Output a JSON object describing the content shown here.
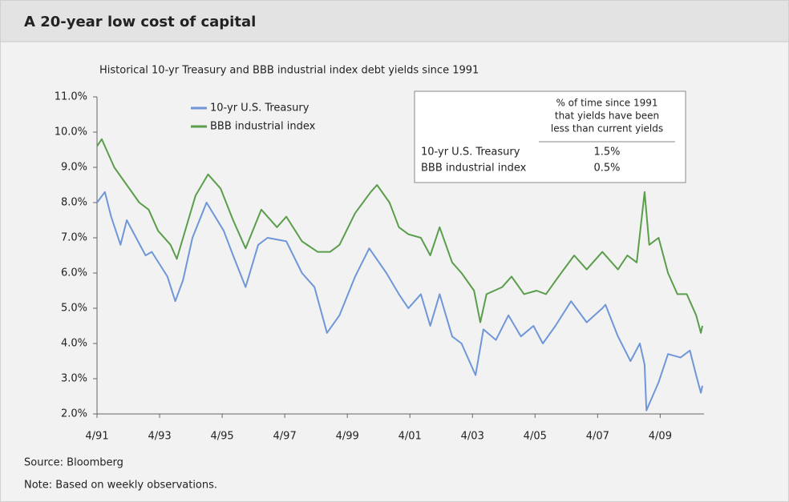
{
  "chart_data": {
    "type": "line",
    "title": "A 20-year low cost of capital",
    "subtitle": "Historical 10-yr Treasury and BBB industrial index debt yields since 1991",
    "source": "Source: Bloomberg",
    "note": "Note: Based on weekly observations.",
    "xlim": [
      1991.25,
      2010.65
    ],
    "xticks": [
      {
        "value": 1991.25,
        "label": "4/91"
      },
      {
        "value": 1993.25,
        "label": "4/93"
      },
      {
        "value": 1995.25,
        "label": "4/95"
      },
      {
        "value": 1997.25,
        "label": "4/97"
      },
      {
        "value": 1999.25,
        "label": "4/99"
      },
      {
        "value": 2001.25,
        "label": "4/01"
      },
      {
        "value": 2003.25,
        "label": "4/03"
      },
      {
        "value": 2005.25,
        "label": "4/05"
      },
      {
        "value": 2007.25,
        "label": "4/07"
      },
      {
        "value": 2009.25,
        "label": "4/09"
      }
    ],
    "ylim": [
      2,
      11
    ],
    "yticks": [
      {
        "value": 2,
        "label": "2.0%"
      },
      {
        "value": 3,
        "label": "3.0%"
      },
      {
        "value": 4,
        "label": "4.0%"
      },
      {
        "value": 5,
        "label": "5.0%"
      },
      {
        "value": 6,
        "label": "6.0%"
      },
      {
        "value": 7,
        "label": "7.0%"
      },
      {
        "value": 8,
        "label": "8.0%"
      },
      {
        "value": 9,
        "label": "9.0%"
      },
      {
        "value": 10,
        "label": "10.0%"
      },
      {
        "value": 11,
        "label": "11.0%"
      }
    ],
    "grid": false,
    "series": [
      {
        "name": "10-yr U.S. Treasury",
        "color": "#6f97d8",
        "x": [
          1991.25,
          1991.5,
          1991.7,
          1992.0,
          1992.2,
          1992.5,
          1992.8,
          1993.0,
          1993.5,
          1993.75,
          1994.0,
          1994.3,
          1994.75,
          1995.3,
          1995.6,
          1996.0,
          1996.4,
          1996.7,
          1997.3,
          1997.8,
          1998.2,
          1998.6,
          1999.0,
          1999.5,
          1999.95,
          2000.5,
          2000.9,
          2001.2,
          2001.6,
          2001.9,
          2002.2,
          2002.6,
          2002.9,
          2003.35,
          2003.6,
          2004.0,
          2004.4,
          2004.8,
          2005.2,
          2005.5,
          2005.9,
          2006.4,
          2006.9,
          2007.4,
          2007.5,
          2007.9,
          2008.3,
          2008.6,
          2008.75,
          2008.81,
          2009.2,
          2009.5,
          2009.9,
          2010.2,
          2010.4,
          2010.55,
          2010.6
        ],
        "values": [
          8.0,
          8.3,
          7.6,
          6.8,
          7.5,
          7.0,
          6.5,
          6.6,
          5.9,
          5.2,
          5.8,
          7.0,
          8.0,
          7.2,
          6.5,
          5.6,
          6.8,
          7.0,
          6.9,
          6.0,
          5.6,
          4.3,
          4.8,
          5.9,
          6.7,
          6.0,
          5.4,
          5.0,
          5.4,
          4.5,
          5.4,
          4.2,
          4.0,
          3.1,
          4.4,
          4.1,
          4.8,
          4.2,
          4.5,
          4.0,
          4.5,
          5.2,
          4.6,
          5.0,
          5.1,
          4.2,
          3.5,
          4.0,
          3.4,
          2.1,
          2.9,
          3.7,
          3.6,
          3.8,
          3.1,
          2.6,
          2.8
        ]
      },
      {
        "name": "BBB industrial index",
        "color": "#5a9e4b",
        "x": [
          1991.25,
          1991.4,
          1991.8,
          1992.2,
          1992.6,
          1992.9,
          1993.2,
          1993.6,
          1993.8,
          1994.0,
          1994.4,
          1994.8,
          1995.2,
          1995.6,
          1996.0,
          1996.5,
          1997.0,
          1997.3,
          1997.8,
          1998.3,
          1998.7,
          1999.0,
          1999.5,
          2000.0,
          2000.2,
          2000.6,
          2000.9,
          2001.2,
          2001.6,
          2001.9,
          2002.2,
          2002.6,
          2002.9,
          2003.3,
          2003.5,
          2003.7,
          2004.2,
          2004.5,
          2004.9,
          2005.3,
          2005.6,
          2006.0,
          2006.5,
          2006.9,
          2007.4,
          2007.9,
          2008.2,
          2008.5,
          2008.75,
          2008.9,
          2009.2,
          2009.5,
          2009.8,
          2010.1,
          2010.4,
          2010.55,
          2010.6
        ],
        "values": [
          9.6,
          9.8,
          9.0,
          8.5,
          8.0,
          7.8,
          7.2,
          6.8,
          6.4,
          7.0,
          8.2,
          8.8,
          8.4,
          7.5,
          6.7,
          7.8,
          7.3,
          7.6,
          6.9,
          6.6,
          6.6,
          6.8,
          7.7,
          8.3,
          8.5,
          8.0,
          7.3,
          7.1,
          7.0,
          6.5,
          7.3,
          6.3,
          6.0,
          5.5,
          4.6,
          5.4,
          5.6,
          5.9,
          5.4,
          5.5,
          5.4,
          5.9,
          6.5,
          6.1,
          6.6,
          6.1,
          6.5,
          6.3,
          8.3,
          6.8,
          7.0,
          6.0,
          5.4,
          5.4,
          4.8,
          4.3,
          4.5
        ]
      }
    ],
    "inset_table": {
      "header": [
        "% of time since 1991",
        "that yields have been",
        "less than current yields"
      ],
      "rows": [
        [
          "10-yr U.S. Treasury",
          "1.5%"
        ],
        [
          "BBB industrial index",
          "0.5%"
        ]
      ]
    }
  }
}
